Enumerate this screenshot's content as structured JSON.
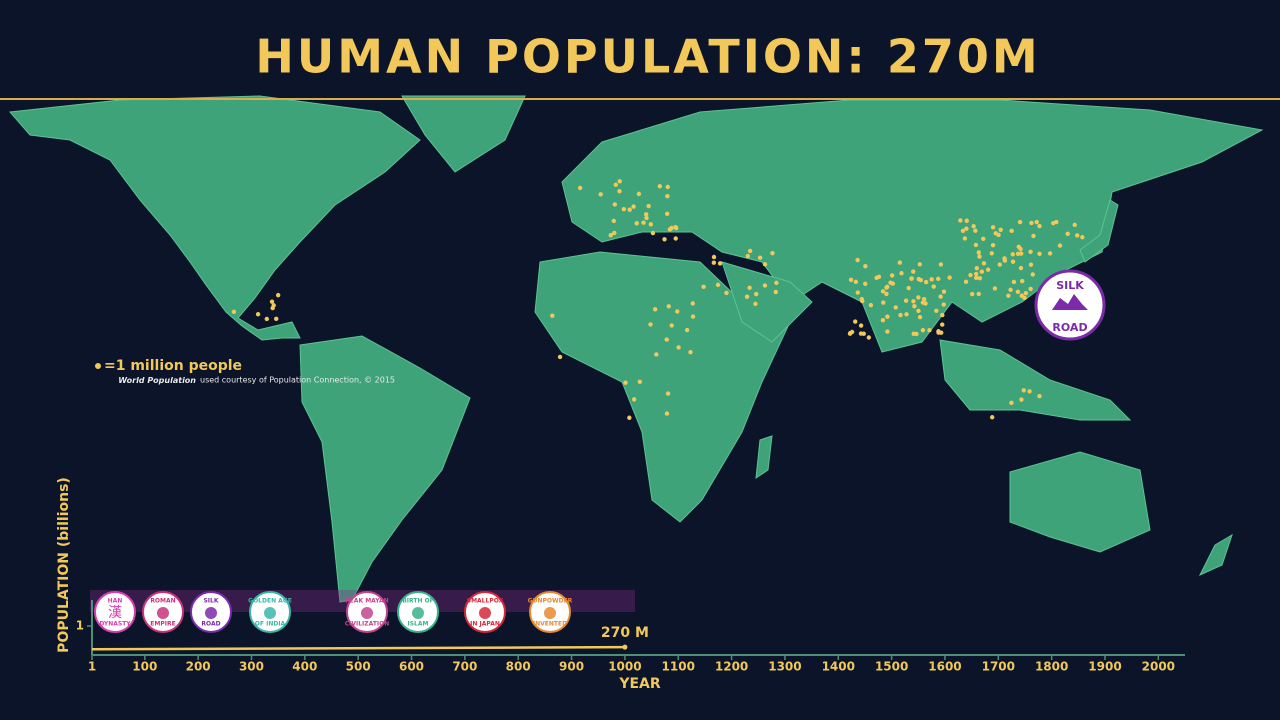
{
  "title": "HUMAN POPULATION: 270M",
  "map_badge": {
    "top": "SILK",
    "bottom": "ROAD"
  },
  "legend": {
    "label": "=1 million people",
    "credit_title": "World Population",
    "credit_text": "used courtesy of Population Connection, © 2015",
    "credit_line2": "of Population Connection, © 2015"
  },
  "events": [
    {
      "top": "HAN",
      "glyph": "漢",
      "bottom": "DYNASTY",
      "color": "#d63fb0"
    },
    {
      "top": "ROMAN",
      "bottom": "EMPIRE",
      "color": "#c8327a"
    },
    {
      "top": "SILK",
      "bottom": "ROAD",
      "color": "#7b2aa8"
    },
    {
      "top": "GOLDEN AGE",
      "bottom": "OF INDIA",
      "color": "#3bb6a8"
    },
    {
      "top": "PEAK MAYAN",
      "bottom": "CIVILIZATION",
      "color": "#c2458e"
    },
    {
      "top": "BIRTH OF",
      "bottom": "ISLAM",
      "color": "#39b38a"
    },
    {
      "top": "SMALLPOX",
      "bottom": "IN JAPAN",
      "color": "#d6283a"
    },
    {
      "top": "GUNPOWDER",
      "bottom": "INVENTED",
      "color": "#e8892e"
    }
  ],
  "chart_data": {
    "type": "line",
    "x_label": "YEAR",
    "y_label": "POPULATION (billions)",
    "x": [
      1,
      1000
    ],
    "values": [
      0.2,
      0.27
    ],
    "value_labels": [
      null,
      "270 M"
    ],
    "color": "#f2c85b",
    "xlim": [
      1,
      2050
    ],
    "ylim": [
      0,
      1.9
    ],
    "xticks": [
      1,
      100,
      200,
      300,
      400,
      500,
      600,
      700,
      800,
      900,
      1000,
      1100,
      1200,
      1300,
      1400,
      1500,
      1600,
      1700,
      1800,
      1900,
      2000
    ],
    "yticks": [
      1
    ]
  }
}
